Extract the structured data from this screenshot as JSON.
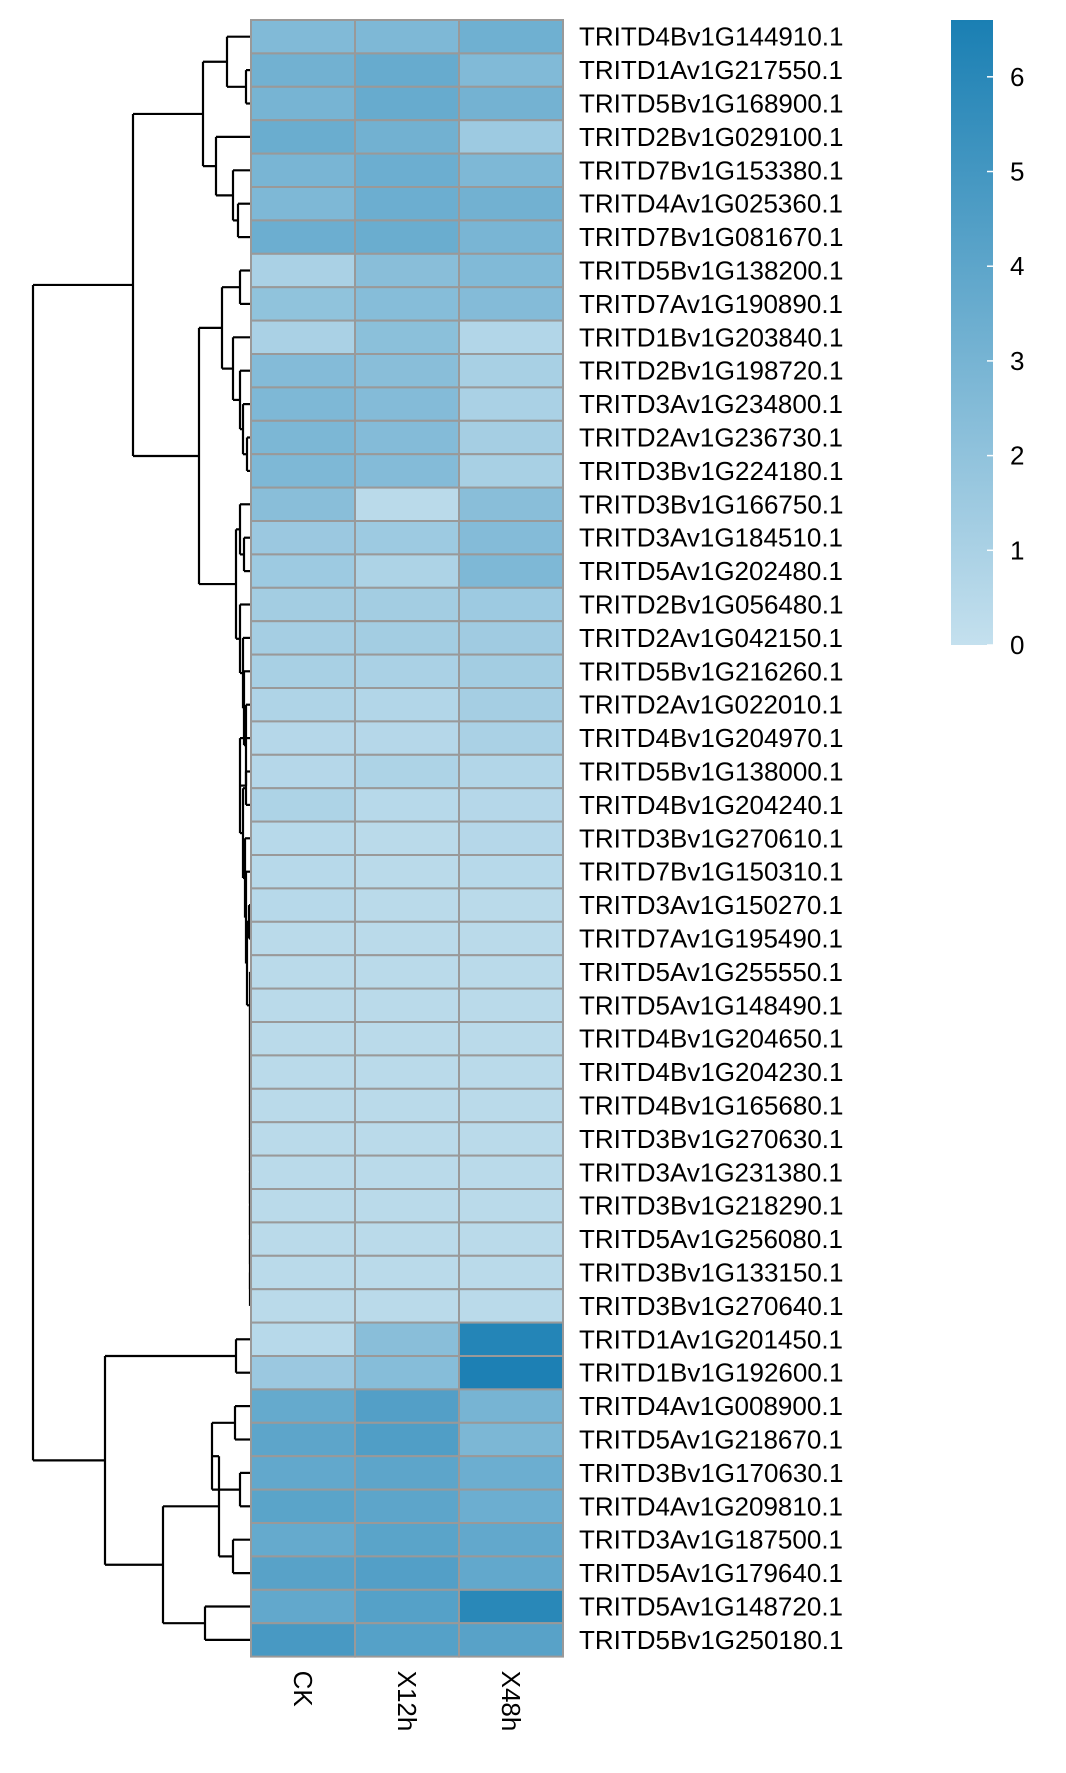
{
  "chart_data": {
    "type": "heatmap",
    "title": "",
    "xlabel": "",
    "ylabel": "",
    "columns": [
      "CK",
      "X12h",
      "X48h"
    ],
    "rows": [
      "TRITD4Bv1G144910.1",
      "TRITD1Av1G217550.1",
      "TRITD5Bv1G168900.1",
      "TRITD2Bv1G029100.1",
      "TRITD7Bv1G153380.1",
      "TRITD4Av1G025360.1",
      "TRITD7Bv1G081670.1",
      "TRITD5Bv1G138200.1",
      "TRITD7Av1G190890.1",
      "TRITD1Bv1G203840.1",
      "TRITD2Bv1G198720.1",
      "TRITD3Av1G234800.1",
      "TRITD2Av1G236730.1",
      "TRITD3Bv1G224180.1",
      "TRITD3Bv1G166750.1",
      "TRITD3Av1G184510.1",
      "TRITD5Av1G202480.1",
      "TRITD2Bv1G056480.1",
      "TRITD2Av1G042150.1",
      "TRITD5Bv1G216260.1",
      "TRITD2Av1G022010.1",
      "TRITD4Bv1G204970.1",
      "TRITD5Bv1G138000.1",
      "TRITD4Bv1G204240.1",
      "TRITD3Bv1G270610.1",
      "TRITD7Bv1G150310.1",
      "TRITD3Av1G150270.1",
      "TRITD7Av1G195490.1",
      "TRITD5Av1G255550.1",
      "TRITD5Av1G148490.1",
      "TRITD4Bv1G204650.1",
      "TRITD4Bv1G204230.1",
      "TRITD4Bv1G165680.1",
      "TRITD3Bv1G270630.1",
      "TRITD3Av1G231380.1",
      "TRITD3Bv1G218290.1",
      "TRITD5Av1G256080.1",
      "TRITD3Bv1G133150.1",
      "TRITD3Bv1G270640.1",
      "TRITD1Av1G201450.1",
      "TRITD1Bv1G192600.1",
      "TRITD4Av1G008900.1",
      "TRITD5Av1G218670.1",
      "TRITD3Bv1G170630.1",
      "TRITD4Av1G209810.1",
      "TRITD3Av1G187500.1",
      "TRITD5Av1G179640.1",
      "TRITD5Av1G148720.1",
      "TRITD5Bv1G250180.1"
    ],
    "values": [
      [
        2.6,
        2.7,
        3.3
      ],
      [
        3.2,
        3.6,
        2.6
      ],
      [
        3.0,
        3.6,
        3.1
      ],
      [
        3.5,
        3.2,
        1.5
      ],
      [
        2.9,
        3.4,
        2.7
      ],
      [
        2.7,
        3.4,
        3.2
      ],
      [
        3.4,
        3.5,
        2.9
      ],
      [
        1.0,
        2.3,
        2.6
      ],
      [
        2.0,
        2.4,
        2.5
      ],
      [
        1.0,
        2.2,
        0.7
      ],
      [
        2.5,
        2.3,
        1.1
      ],
      [
        2.7,
        2.5,
        1.0
      ],
      [
        2.8,
        2.5,
        1.2
      ],
      [
        2.7,
        2.5,
        1.1
      ],
      [
        2.3,
        0.4,
        2.3
      ],
      [
        1.6,
        1.5,
        2.5
      ],
      [
        1.5,
        0.9,
        2.7
      ],
      [
        1.3,
        1.3,
        1.5
      ],
      [
        1.2,
        1.3,
        1.4
      ],
      [
        1.1,
        1.0,
        1.3
      ],
      [
        0.8,
        0.7,
        1.2
      ],
      [
        0.6,
        0.6,
        1.0
      ],
      [
        0.6,
        0.9,
        0.7
      ],
      [
        0.9,
        0.5,
        0.6
      ],
      [
        0.5,
        0.4,
        0.6
      ],
      [
        0.5,
        0.4,
        0.5
      ],
      [
        0.5,
        0.4,
        0.4
      ],
      [
        0.4,
        0.4,
        0.4
      ],
      [
        0.4,
        0.4,
        0.4
      ],
      [
        0.4,
        0.4,
        0.4
      ],
      [
        0.4,
        0.4,
        0.4
      ],
      [
        0.4,
        0.4,
        0.4
      ],
      [
        0.4,
        0.4,
        0.4
      ],
      [
        0.4,
        0.4,
        0.4
      ],
      [
        0.4,
        0.4,
        0.4
      ],
      [
        0.4,
        0.4,
        0.4
      ],
      [
        0.4,
        0.4,
        0.4
      ],
      [
        0.4,
        0.4,
        0.4
      ],
      [
        0.4,
        0.4,
        0.4
      ],
      [
        0.5,
        2.3,
        6.2
      ],
      [
        1.6,
        2.4,
        6.5
      ],
      [
        3.7,
        4.4,
        3.0
      ],
      [
        4.0,
        4.5,
        2.8
      ],
      [
        3.8,
        4.0,
        3.4
      ],
      [
        4.1,
        4.0,
        3.4
      ],
      [
        3.7,
        4.1,
        3.8
      ],
      [
        4.2,
        4.4,
        3.8
      ],
      [
        3.8,
        4.3,
        6.0
      ],
      [
        4.8,
        4.3,
        4.2
      ]
    ],
    "color_scale": {
      "min": 0,
      "max": 6.6,
      "low_color": "#c4e0ee",
      "high_color": "#1a7fb3",
      "ticks": [
        "0",
        "1",
        "2",
        "3",
        "4",
        "5",
        "6"
      ],
      "legend_position": "top-right"
    },
    "row_dendrogram": "left",
    "cell_border_color": "#999999"
  }
}
